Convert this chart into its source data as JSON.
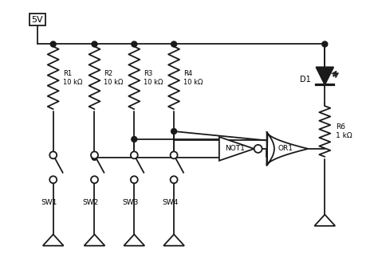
{
  "bg_color": "#ffffff",
  "line_color": "#1a1a1a",
  "line_width": 1.3,
  "vcc_label": "5V",
  "res_labels": [
    "R1\n10 kΩ",
    "R2\n10 kΩ",
    "R3\n10 kΩ",
    "R4\n10 kΩ"
  ],
  "sw_labels": [
    "SW1",
    "SW2",
    "SW3",
    "SW4"
  ],
  "r6_label": "R6\n1 kΩ",
  "d1_label": "D1",
  "not_label": "NOT1",
  "or_label": "OR1",
  "figsize": [
    4.74,
    3.38
  ],
  "dpi": 100
}
